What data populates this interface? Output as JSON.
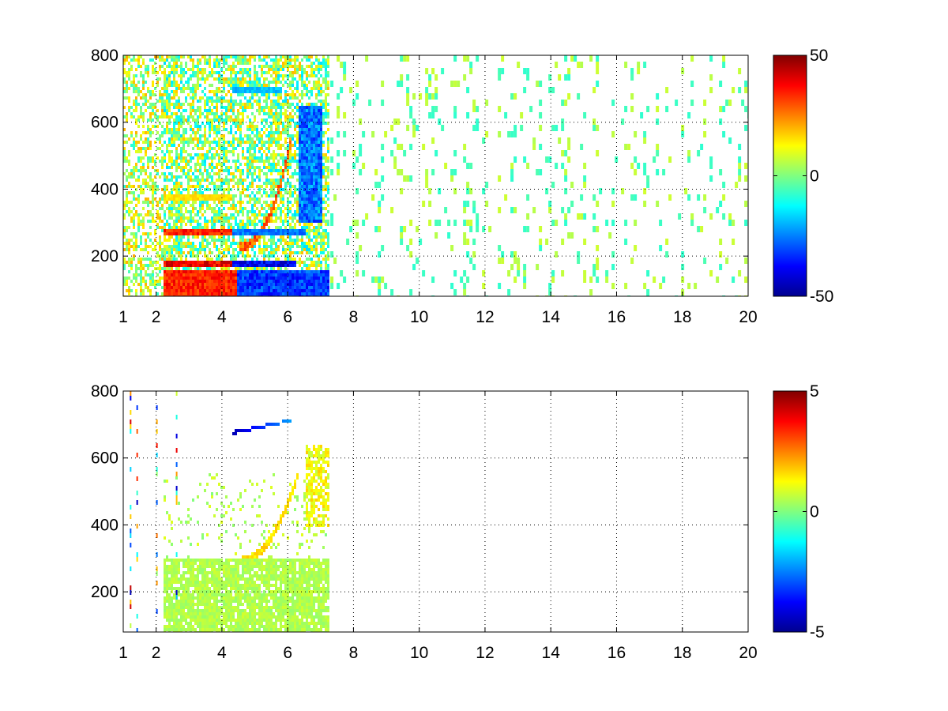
{
  "chart_data": [
    {
      "type": "heatmap",
      "title": "",
      "xlabel": "",
      "ylabel": "",
      "xlim": [
        1,
        20
      ],
      "ylim": [
        80,
        800
      ],
      "x_ticks": [
        1,
        2,
        4,
        6,
        8,
        10,
        12,
        14,
        16,
        18,
        20
      ],
      "y_ticks": [
        200,
        400,
        600,
        800
      ],
      "grid": true,
      "colormap": "jet",
      "colorbar": {
        "min": -50,
        "max": 50,
        "ticks": [
          -50,
          0,
          50
        ]
      },
      "features": {
        "dense_region_x": [
          1,
          7.2
        ],
        "strong_bands": [
          {
            "y": 180,
            "x": [
              2.2,
              4.3
            ],
            "value": 45
          },
          {
            "y": 180,
            "x": [
              4.3,
              6.2
            ],
            "value": -45
          },
          {
            "y": 280,
            "x": [
              2.2,
              4.3
            ],
            "value": 40
          },
          {
            "y": 280,
            "x": [
              4.3,
              6.5
            ],
            "value": -30
          },
          {
            "y": 380,
            "x": [
              2.2,
              4.3
            ],
            "value": 18
          },
          {
            "y": 700,
            "x": [
              4.3,
              5.8
            ],
            "value": -22
          }
        ],
        "low_block": {
          "x": [
            2.2,
            7.2
          ],
          "y": [
            80,
            160
          ],
          "left_value": 40,
          "right_value": -40
        },
        "arc": {
          "x": [
            4.5,
            6.1
          ],
          "y": [
            230,
            560
          ],
          "value": 35
        },
        "right_blue_column": {
          "x": [
            6.3,
            7.0
          ],
          "y": [
            300,
            650
          ],
          "value": -35
        },
        "sparse_region_x": [
          7.2,
          20
        ],
        "sparse_value_range": [
          -8,
          8
        ]
      }
    },
    {
      "type": "heatmap",
      "title": "",
      "xlabel": "",
      "ylabel": "",
      "xlim": [
        1,
        20
      ],
      "ylim": [
        80,
        800
      ],
      "x_ticks": [
        1,
        2,
        4,
        6,
        8,
        10,
        12,
        14,
        16,
        18,
        20
      ],
      "y_ticks": [
        200,
        400,
        600,
        800
      ],
      "grid": true,
      "colormap": "jet",
      "colorbar": {
        "min": -5,
        "max": 5,
        "ticks": [
          -5,
          0,
          5
        ]
      },
      "features": {
        "dense_region_x": [
          2.2,
          7.2
        ],
        "green_block": {
          "x": [
            2.2,
            7.2
          ],
          "y": [
            80,
            300
          ],
          "value": 0.5
        },
        "arc": {
          "x": [
            4.6,
            6.3
          ],
          "y": [
            300,
            560
          ],
          "value": 1.5
        },
        "right_column": {
          "x": [
            6.5,
            7.2
          ],
          "y": [
            400,
            640
          ],
          "value": 1.2
        },
        "blue_streak": {
          "x": [
            4.3,
            6.2
          ],
          "y": [
            680,
            720
          ],
          "value": -4.5
        },
        "sparse_lines_x": [
          1.2,
          1.4,
          2.0,
          2.6
        ]
      }
    }
  ]
}
